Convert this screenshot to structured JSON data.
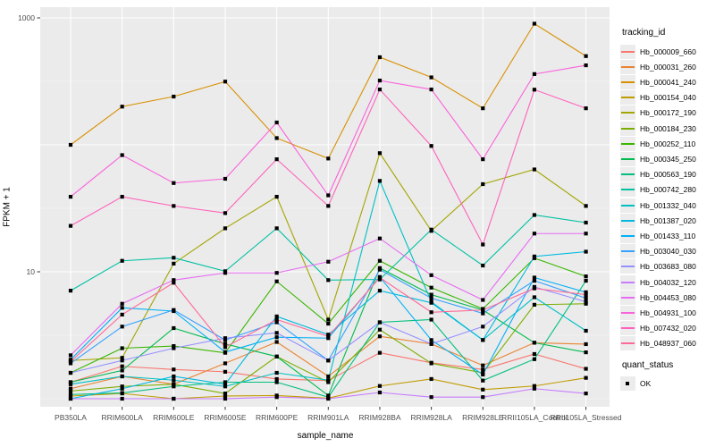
{
  "figure": {
    "background": "#FFFFFF",
    "panel_background": "#EBEBEB",
    "grid_major_color": "#FFFFFF",
    "grid_minor_color": "#F5F5F5",
    "axis_text_color": "#4D4D4D",
    "tick_mark_color": "#333333",
    "point_color": "#000000"
  },
  "axes": {
    "x_title": "sample_name",
    "y_title": "FPKM + 1"
  },
  "legend": {
    "tracking_title": "tracking_id",
    "quant_title": "quant_status",
    "quant_label": "OK"
  },
  "chart_data": {
    "type": "line",
    "title": "",
    "xlabel": "sample_name",
    "ylabel": "FPKM + 1",
    "y_scale": "log10",
    "grid": true,
    "legend_position": "right",
    "point_marker": "square",
    "quant_status": "OK",
    "y_ticks": [
      10,
      1000
    ],
    "y_minor_ticks": [
      1,
      3.162,
      31.62,
      316.2
    ],
    "ylim": [
      0.9,
      1210
    ],
    "categories": [
      "PB350LA",
      "RRIM600LA",
      "RRIM600LE",
      "RRIM600SE",
      "RRIM600PE",
      "RRIM901LA",
      "RRIM928BA",
      "RRIM928LA",
      "RRIM928LE",
      "RRII105LA_Control",
      "RRII105LA_Stressed"
    ],
    "series": [
      {
        "name": "Hb_000009_660",
        "color": "#F8766D",
        "values": [
          1.35,
          1.8,
          1.7,
          1.63,
          1.43,
          1.39,
          2.3,
          1.92,
          1.7,
          2.25,
          1.72
        ]
      },
      {
        "name": "Hb_000031_260",
        "color": "#EA8331",
        "values": [
          1.2,
          1.5,
          1.3,
          1.9,
          2.8,
          1.5,
          3.1,
          2.7,
          1.83,
          2.76,
          2.69
        ]
      },
      {
        "name": "Hb_000041_240",
        "color": "#D89000",
        "values": [
          100,
          200,
          240,
          315,
          113,
          78,
          490,
          340,
          194,
          900,
          500
        ]
      },
      {
        "name": "Hb_000154_040",
        "color": "#C09B00",
        "values": [
          1.05,
          1.1,
          1.0,
          1.05,
          1.06,
          1.01,
          1.26,
          1.43,
          1.18,
          1.26,
          1.46
        ]
      },
      {
        "name": "Hb_000172_190",
        "color": "#A3A500",
        "values": [
          2.0,
          2.1,
          11.6,
          22,
          39,
          4.2,
          86,
          21,
          49,
          64,
          33
        ]
      },
      {
        "name": "Hb_000184_230",
        "color": "#7CAE00",
        "values": [
          1.15,
          1.25,
          1.3,
          1.1,
          2.15,
          1.35,
          3.5,
          1.9,
          1.6,
          5.5,
          5.6
        ]
      },
      {
        "name": "Hb_000252_110",
        "color": "#39B600",
        "values": [
          1.6,
          2.5,
          2.6,
          2.3,
          8.4,
          3.9,
          12.2,
          7.5,
          5.1,
          12.8,
          9.2
        ]
      },
      {
        "name": "Hb_000345_250",
        "color": "#00BB4E",
        "values": [
          1.35,
          1.67,
          3.6,
          2.7,
          2.15,
          1.06,
          10.7,
          6.6,
          5.0,
          2.76,
          2.32
        ]
      },
      {
        "name": "Hb_000563_190",
        "color": "#00BF7D",
        "values": [
          1.08,
          1.11,
          1.25,
          1.35,
          1.35,
          1.03,
          4.0,
          4.2,
          1.39,
          2.05,
          8.5
        ]
      },
      {
        "name": "Hb_000742_280",
        "color": "#00C1A3",
        "values": [
          7.1,
          12.2,
          12.9,
          10.1,
          22,
          8.6,
          8.7,
          21.5,
          11.2,
          28,
          24.4
        ]
      },
      {
        "name": "Hb_001332_040",
        "color": "#00BFC4",
        "values": [
          1.3,
          1.5,
          1.4,
          1.25,
          1.6,
          1.4,
          52,
          5.8,
          2.9,
          6.3,
          3.43
        ]
      },
      {
        "name": "Hb_001387_020",
        "color": "#00BAE0",
        "values": [
          1.0,
          1.2,
          1.5,
          1.3,
          4.45,
          3.2,
          7.1,
          5.7,
          2.9,
          13.2,
          14.4
        ]
      },
      {
        "name": "Hb_001433_110",
        "color": "#00B0F6",
        "values": [
          2.03,
          5.2,
          4.9,
          2.33,
          3.05,
          3.0,
          9.1,
          2.9,
          1.55,
          9.0,
          6.9
        ]
      },
      {
        "name": "Hb_003040_030",
        "color": "#35A2FF",
        "values": [
          1.9,
          3.7,
          5.0,
          2.9,
          4.0,
          2.0,
          10.4,
          6.2,
          4.7,
          8.5,
          6.2
        ]
      },
      {
        "name": "Hb_003683_080",
        "color": "#9590FF",
        "values": [
          1.6,
          2.0,
          2.5,
          3.0,
          3.3,
          2.0,
          4.0,
          2.7,
          3.7,
          7.6,
          5.8
        ]
      },
      {
        "name": "Hb_004032_120",
        "color": "#C77CFF",
        "values": [
          1.0,
          1.0,
          1.0,
          1.0,
          1.03,
          1.0,
          1.12,
          1.03,
          1.03,
          1.2,
          1.1
        ]
      },
      {
        "name": "Hb_004453_080",
        "color": "#E76BF3",
        "values": [
          2.2,
          5.6,
          8.6,
          9.8,
          9.8,
          12,
          18.3,
          9.4,
          6.0,
          20,
          20
        ]
      },
      {
        "name": "Hb_004931_100",
        "color": "#FA62DB",
        "values": [
          39,
          83,
          50,
          54,
          150,
          40,
          321,
          273,
          77,
          361,
          423
        ]
      },
      {
        "name": "Hb_007432_020",
        "color": "#FF62BC",
        "values": [
          23,
          39,
          33,
          29,
          77,
          33,
          273,
          98,
          16.4,
          272,
          194
        ]
      },
      {
        "name": "Hb_048937_060",
        "color": "#FF6A98",
        "values": [
          1.96,
          4.6,
          8.2,
          2.55,
          4.2,
          3.1,
          9.0,
          4.8,
          5.0,
          7.4,
          6.6
        ]
      }
    ]
  }
}
